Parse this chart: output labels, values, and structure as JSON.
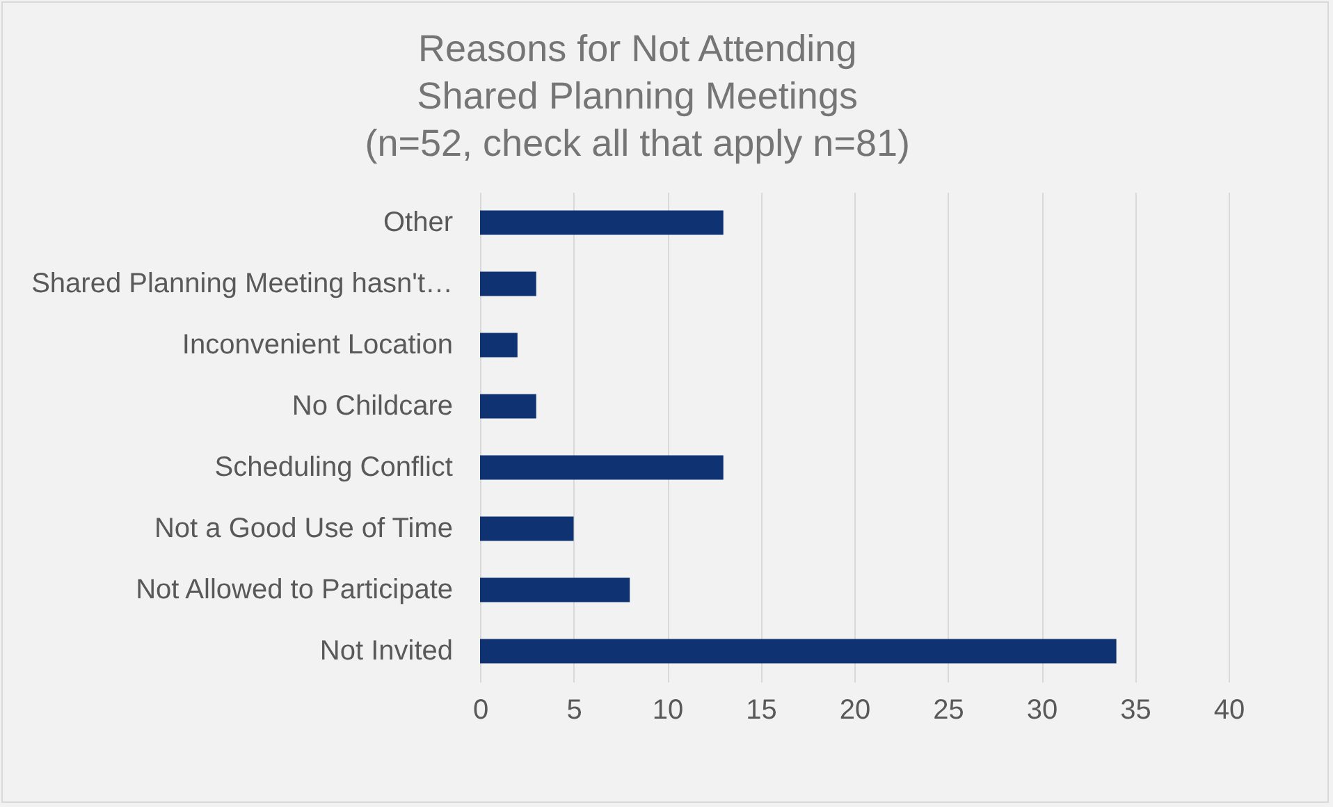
{
  "chart_data": {
    "type": "bar",
    "orientation": "horizontal",
    "title": "Reasons for Not Attending\nShared Planning Meetings\n(n=52, check all that apply n=81)",
    "categories": [
      "Other",
      "Shared Planning Meeting hasn't…",
      "Inconvenient Location",
      "No Childcare",
      "Scheduling Conflict",
      "Not a Good Use of Time",
      "Not Allowed to Participate",
      "Not Invited"
    ],
    "values": [
      13,
      3,
      2,
      3,
      13,
      5,
      8,
      34
    ],
    "color": "#0e3272",
    "xlim": [
      0,
      40
    ],
    "xticks": [
      0,
      5,
      10,
      15,
      20,
      25,
      30,
      35,
      40
    ],
    "grid": "x"
  }
}
